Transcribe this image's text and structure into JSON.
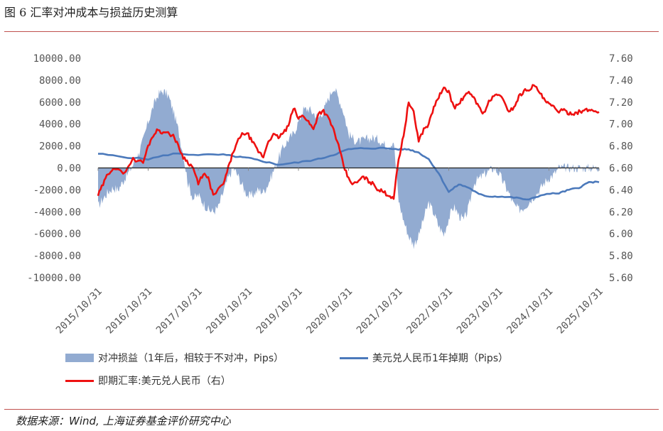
{
  "figure": {
    "title": "图 6 汇率对冲成本与损益历史测算",
    "source": "数据来源：Wind, 上海证券基金评价研究中心"
  },
  "chart_data": {
    "type": "line",
    "title": "图 6 汇率对冲成本与损益历史测算",
    "x_categories": [
      "2015/10/31",
      "2016/10/31",
      "2017/10/31",
      "2018/10/31",
      "2019/10/31",
      "2020/10/31",
      "2021/10/31",
      "2022/10/31",
      "2023/10/31",
      "2024/10/31",
      "2025/10/31"
    ],
    "y_left": {
      "min": -10000,
      "max": 10000,
      "step": 2000,
      "tick_labels": [
        "10000.00",
        "8000.00",
        "6000.00",
        "4000.00",
        "2000.00",
        "0.00",
        "-2000.00",
        "-4000.00",
        "-6000.00",
        "-8000.00",
        "-10000.00"
      ]
    },
    "y_right": {
      "min": 5.6,
      "max": 7.6,
      "step": 0.2,
      "tick_labels": [
        "7.60",
        "7.40",
        "7.20",
        "7.00",
        "6.80",
        "6.60",
        "6.40",
        "6.20",
        "6.00",
        "5.80",
        "5.60"
      ]
    },
    "series": [
      {
        "name": "对冲损益（1年后，相较于不对冲，Pips）",
        "type": "area",
        "axis": "left",
        "color": "#92abd1",
        "t": [
          0,
          0.1,
          0.2,
          0.3,
          0.4,
          0.5,
          0.6,
          0.7,
          0.8,
          0.9,
          1.0,
          1.1,
          1.2,
          1.3,
          1.4,
          1.5,
          1.6,
          1.7,
          1.8,
          1.9,
          2.0,
          2.1,
          2.2,
          2.3,
          2.4,
          2.5,
          2.6,
          2.7,
          2.8,
          2.9,
          3.0,
          3.1,
          3.2,
          3.3,
          3.4,
          3.5,
          3.6,
          3.7,
          3.8,
          3.9,
          4.0,
          4.1,
          4.2,
          4.3,
          4.4,
          4.5,
          4.6,
          4.7,
          4.8,
          4.9,
          5.0,
          5.1,
          5.2,
          5.3,
          5.4,
          5.5,
          5.6,
          5.7,
          5.8,
          5.9,
          6.0,
          6.1,
          6.2,
          6.3,
          6.4,
          6.5,
          6.6,
          6.7,
          6.8,
          6.9,
          7.0,
          7.1,
          7.2,
          7.3,
          7.4,
          7.5,
          7.6,
          7.7,
          7.8,
          7.9,
          8.0,
          8.1,
          8.2,
          8.3,
          8.4,
          8.5,
          8.6,
          8.7,
          8.8,
          8.9,
          9.0,
          9.1,
          9.2,
          9.3,
          9.4,
          9.5,
          9.6,
          9.7,
          9.8,
          9.9,
          10.0
        ],
        "values": [
          -3500,
          -2800,
          -2200,
          -1800,
          -2000,
          -1200,
          -500,
          300,
          1200,
          2500,
          4200,
          5600,
          6700,
          7000,
          6600,
          5200,
          3500,
          1200,
          -1500,
          -2800,
          -2500,
          -3200,
          -3800,
          -4000,
          -3600,
          -2200,
          -900,
          0,
          -800,
          -1800,
          -2600,
          -2400,
          -2000,
          -2200,
          -1400,
          -300,
          900,
          1900,
          2600,
          3100,
          4200,
          5300,
          5400,
          5000,
          4600,
          5200,
          6300,
          7400,
          6400,
          5100,
          3100,
          2600,
          2400,
          2500,
          2700,
          2700,
          2600,
          2200,
          2000,
          2500,
          -3000,
          -4800,
          -6200,
          -7000,
          -6200,
          -4600,
          -3200,
          -4100,
          -5300,
          -6100,
          -4600,
          -3500,
          -4300,
          -4800,
          -3600,
          -1400,
          -1000,
          -600,
          -300,
          0,
          -500,
          -1400,
          -2300,
          -3400,
          -3800,
          -3600,
          -3100,
          -2600,
          -2100,
          -1400,
          -900,
          -600,
          0,
          0,
          0,
          0,
          0,
          0,
          0,
          0,
          0
        ]
      },
      {
        "name": "美元兑人民币1年掉期（Pips）",
        "type": "line",
        "axis": "left",
        "color": "#4b79bb",
        "t": [
          0,
          0.5,
          1.0,
          1.5,
          2.0,
          2.5,
          2.8,
          3.0,
          3.3,
          3.6,
          4.0,
          4.4,
          4.7,
          5.0,
          5.3,
          5.7,
          6.0,
          6.2,
          6.4,
          6.6,
          6.8,
          7.0,
          7.2,
          7.4,
          7.6,
          7.8,
          8.0,
          8.3,
          8.6,
          8.9,
          9.2,
          9.4,
          9.6,
          9.8,
          10.0
        ],
        "values": [
          1300,
          1000,
          800,
          1300,
          1200,
          1200,
          1000,
          900,
          600,
          300,
          500,
          800,
          1200,
          1700,
          1800,
          1800,
          1700,
          1700,
          1400,
          800,
          -500,
          -2200,
          -1500,
          -1800,
          -2400,
          -2600,
          -2600,
          -2700,
          -2900,
          -2400,
          -2300,
          -2000,
          -1800,
          -1300,
          -1300
        ]
      },
      {
        "name": "即期汇率:美元兑人民币（右）",
        "type": "line",
        "axis": "right",
        "color": "#ee1111",
        "t": [
          0,
          0.1,
          0.2,
          0.3,
          0.5,
          0.7,
          0.9,
          1.0,
          1.1,
          1.2,
          1.3,
          1.5,
          1.6,
          1.7,
          1.8,
          1.9,
          2.0,
          2.1,
          2.2,
          2.3,
          2.5,
          2.6,
          2.7,
          2.8,
          2.9,
          3.0,
          3.1,
          3.2,
          3.3,
          3.4,
          3.5,
          3.6,
          3.7,
          3.8,
          3.9,
          4.0,
          4.1,
          4.2,
          4.3,
          4.4,
          4.5,
          4.6,
          4.7,
          4.8,
          4.9,
          5.0,
          5.1,
          5.2,
          5.3,
          5.4,
          5.5,
          5.6,
          5.7,
          5.8,
          5.9,
          6.0,
          6.1,
          6.2,
          6.3,
          6.4,
          6.5,
          6.6,
          6.7,
          6.8,
          6.9,
          7.0,
          7.1,
          7.2,
          7.3,
          7.4,
          7.5,
          7.6,
          7.7,
          7.8,
          7.9,
          8.0,
          8.1,
          8.2,
          8.3,
          8.4,
          8.5,
          8.6,
          8.7,
          8.8,
          8.9,
          9.0,
          9.1,
          9.2,
          9.3,
          9.4,
          9.5,
          9.6,
          9.7,
          9.8,
          9.9,
          10.0
        ],
        "values": [
          6.35,
          6.45,
          6.55,
          6.6,
          6.55,
          6.68,
          6.65,
          6.8,
          6.9,
          6.95,
          6.92,
          6.9,
          6.8,
          6.7,
          6.65,
          6.6,
          6.45,
          6.55,
          6.5,
          6.35,
          6.45,
          6.6,
          6.75,
          6.85,
          6.92,
          6.9,
          6.82,
          6.75,
          6.7,
          6.85,
          6.9,
          6.88,
          6.92,
          6.98,
          7.15,
          7.05,
          7.08,
          7.02,
          6.95,
          7.1,
          7.12,
          7.05,
          6.95,
          6.8,
          6.62,
          6.5,
          6.45,
          6.48,
          6.52,
          6.48,
          6.45,
          6.4,
          6.38,
          6.35,
          6.33,
          6.68,
          6.9,
          7.2,
          7.1,
          6.85,
          6.95,
          7.0,
          7.15,
          7.25,
          7.32,
          7.3,
          7.15,
          7.18,
          7.25,
          7.28,
          7.25,
          7.15,
          7.1,
          7.2,
          7.25,
          7.28,
          7.2,
          7.12,
          7.15,
          7.25,
          7.3,
          7.32,
          7.35,
          7.3,
          7.22,
          7.18,
          7.15,
          7.12,
          7.12,
          7.1,
          7.1,
          7.11,
          7.12,
          7.13,
          7.12,
          7.11
        ]
      }
    ],
    "legend": {
      "position": "bottom",
      "items": [
        "对冲损益（1年后，相较于不对冲，Pips）",
        "美元兑人民币1年掉期（Pips）",
        "即期汇率:美元兑人民币（右）"
      ]
    }
  }
}
